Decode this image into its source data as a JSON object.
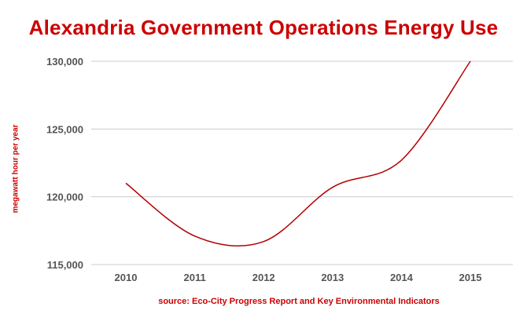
{
  "colors": {
    "accent": "#cc0000",
    "line": "#b30000",
    "grid": "#cccccc",
    "tick_text": "#555555"
  },
  "chart_data": {
    "type": "line",
    "title": "Alexandria Government Operations Energy Use",
    "xlabel": "",
    "ylabel": "megawatt hour per year",
    "source": "source: Eco-City Progress Report and Key Environmental Indicators",
    "x": [
      2010,
      2011,
      2012,
      2013,
      2014,
      2015
    ],
    "x_tick_labels": [
      "2010",
      "2011",
      "2012",
      "2013",
      "2014",
      "2015"
    ],
    "y_ticks": [
      115000,
      120000,
      125000,
      130000
    ],
    "y_tick_labels": [
      "115,000",
      "120,000",
      "125,000",
      "130,000"
    ],
    "ylim": [
      115000,
      130000
    ],
    "grid": "horizontal",
    "series": [
      {
        "values": [
          121000,
          117100,
          116700,
          120700,
          122700,
          130000
        ]
      }
    ]
  }
}
